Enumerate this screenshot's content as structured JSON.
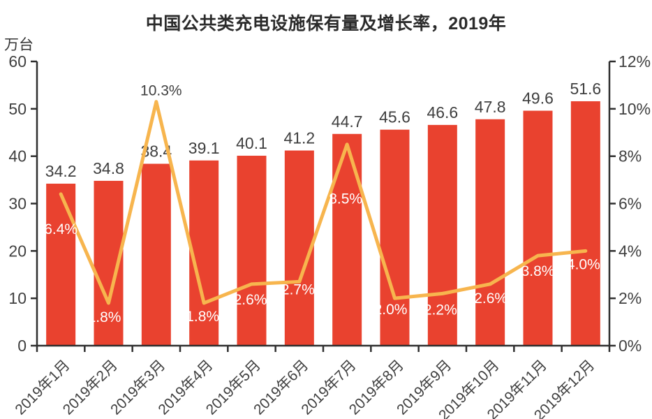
{
  "chart_data": {
    "type": "bar+line",
    "title": "中国公共类充电设施保有量及增长率，2019年",
    "categories": [
      "2019年1月",
      "2019年2月",
      "2019年3月",
      "2019年4月",
      "2019年5月",
      "2019年6月",
      "2019年7月",
      "2019年8月",
      "2019年9月",
      "2019年10月",
      "2019年11月",
      "2019年12月"
    ],
    "series": [
      {
        "role": "bar",
        "axis": "left",
        "values": [
          34.2,
          34.8,
          38.4,
          39.1,
          40.1,
          41.2,
          44.7,
          45.6,
          46.6,
          47.8,
          49.6,
          51.6
        ],
        "labels": [
          "34.2",
          "34.8",
          "38.4",
          "39.1",
          "40.1",
          "41.2",
          "44.7",
          "45.6",
          "46.6",
          "47.8",
          "49.6",
          "51.6"
        ]
      },
      {
        "role": "line",
        "axis": "right",
        "values": [
          6.4,
          1.8,
          10.3,
          1.8,
          2.6,
          2.7,
          8.5,
          2.0,
          2.2,
          2.6,
          3.8,
          4.0
        ],
        "labels": [
          "6.4%",
          "1.8%",
          "10.3%",
          "1.8%",
          "2.6%",
          "2.7%",
          "8.5%",
          "2.0%",
          "2.2%",
          "2.6%",
          "3.8%",
          "4.0%"
        ]
      }
    ],
    "left_axis": {
      "unit": "万台",
      "min": 0,
      "max": 60,
      "step": 10,
      "ticks": [
        "0",
        "10",
        "20",
        "30",
        "40",
        "50",
        "60"
      ]
    },
    "right_axis": {
      "min": 0,
      "max": 12,
      "step": 2,
      "ticks": [
        "0%",
        "2%",
        "4%",
        "6%",
        "8%",
        "10%",
        "12%"
      ]
    },
    "colors": {
      "bar": "#E9422F",
      "line": "#F7B54E",
      "axis": "#2F2F2F",
      "tick_text": "#404040",
      "bar_value_text": "#3F3F3F",
      "label_on_bar": "#FFFFFF",
      "label_above_line": "#404040",
      "title_text": "#2B2B2B"
    },
    "grid": false,
    "legend": "none"
  }
}
